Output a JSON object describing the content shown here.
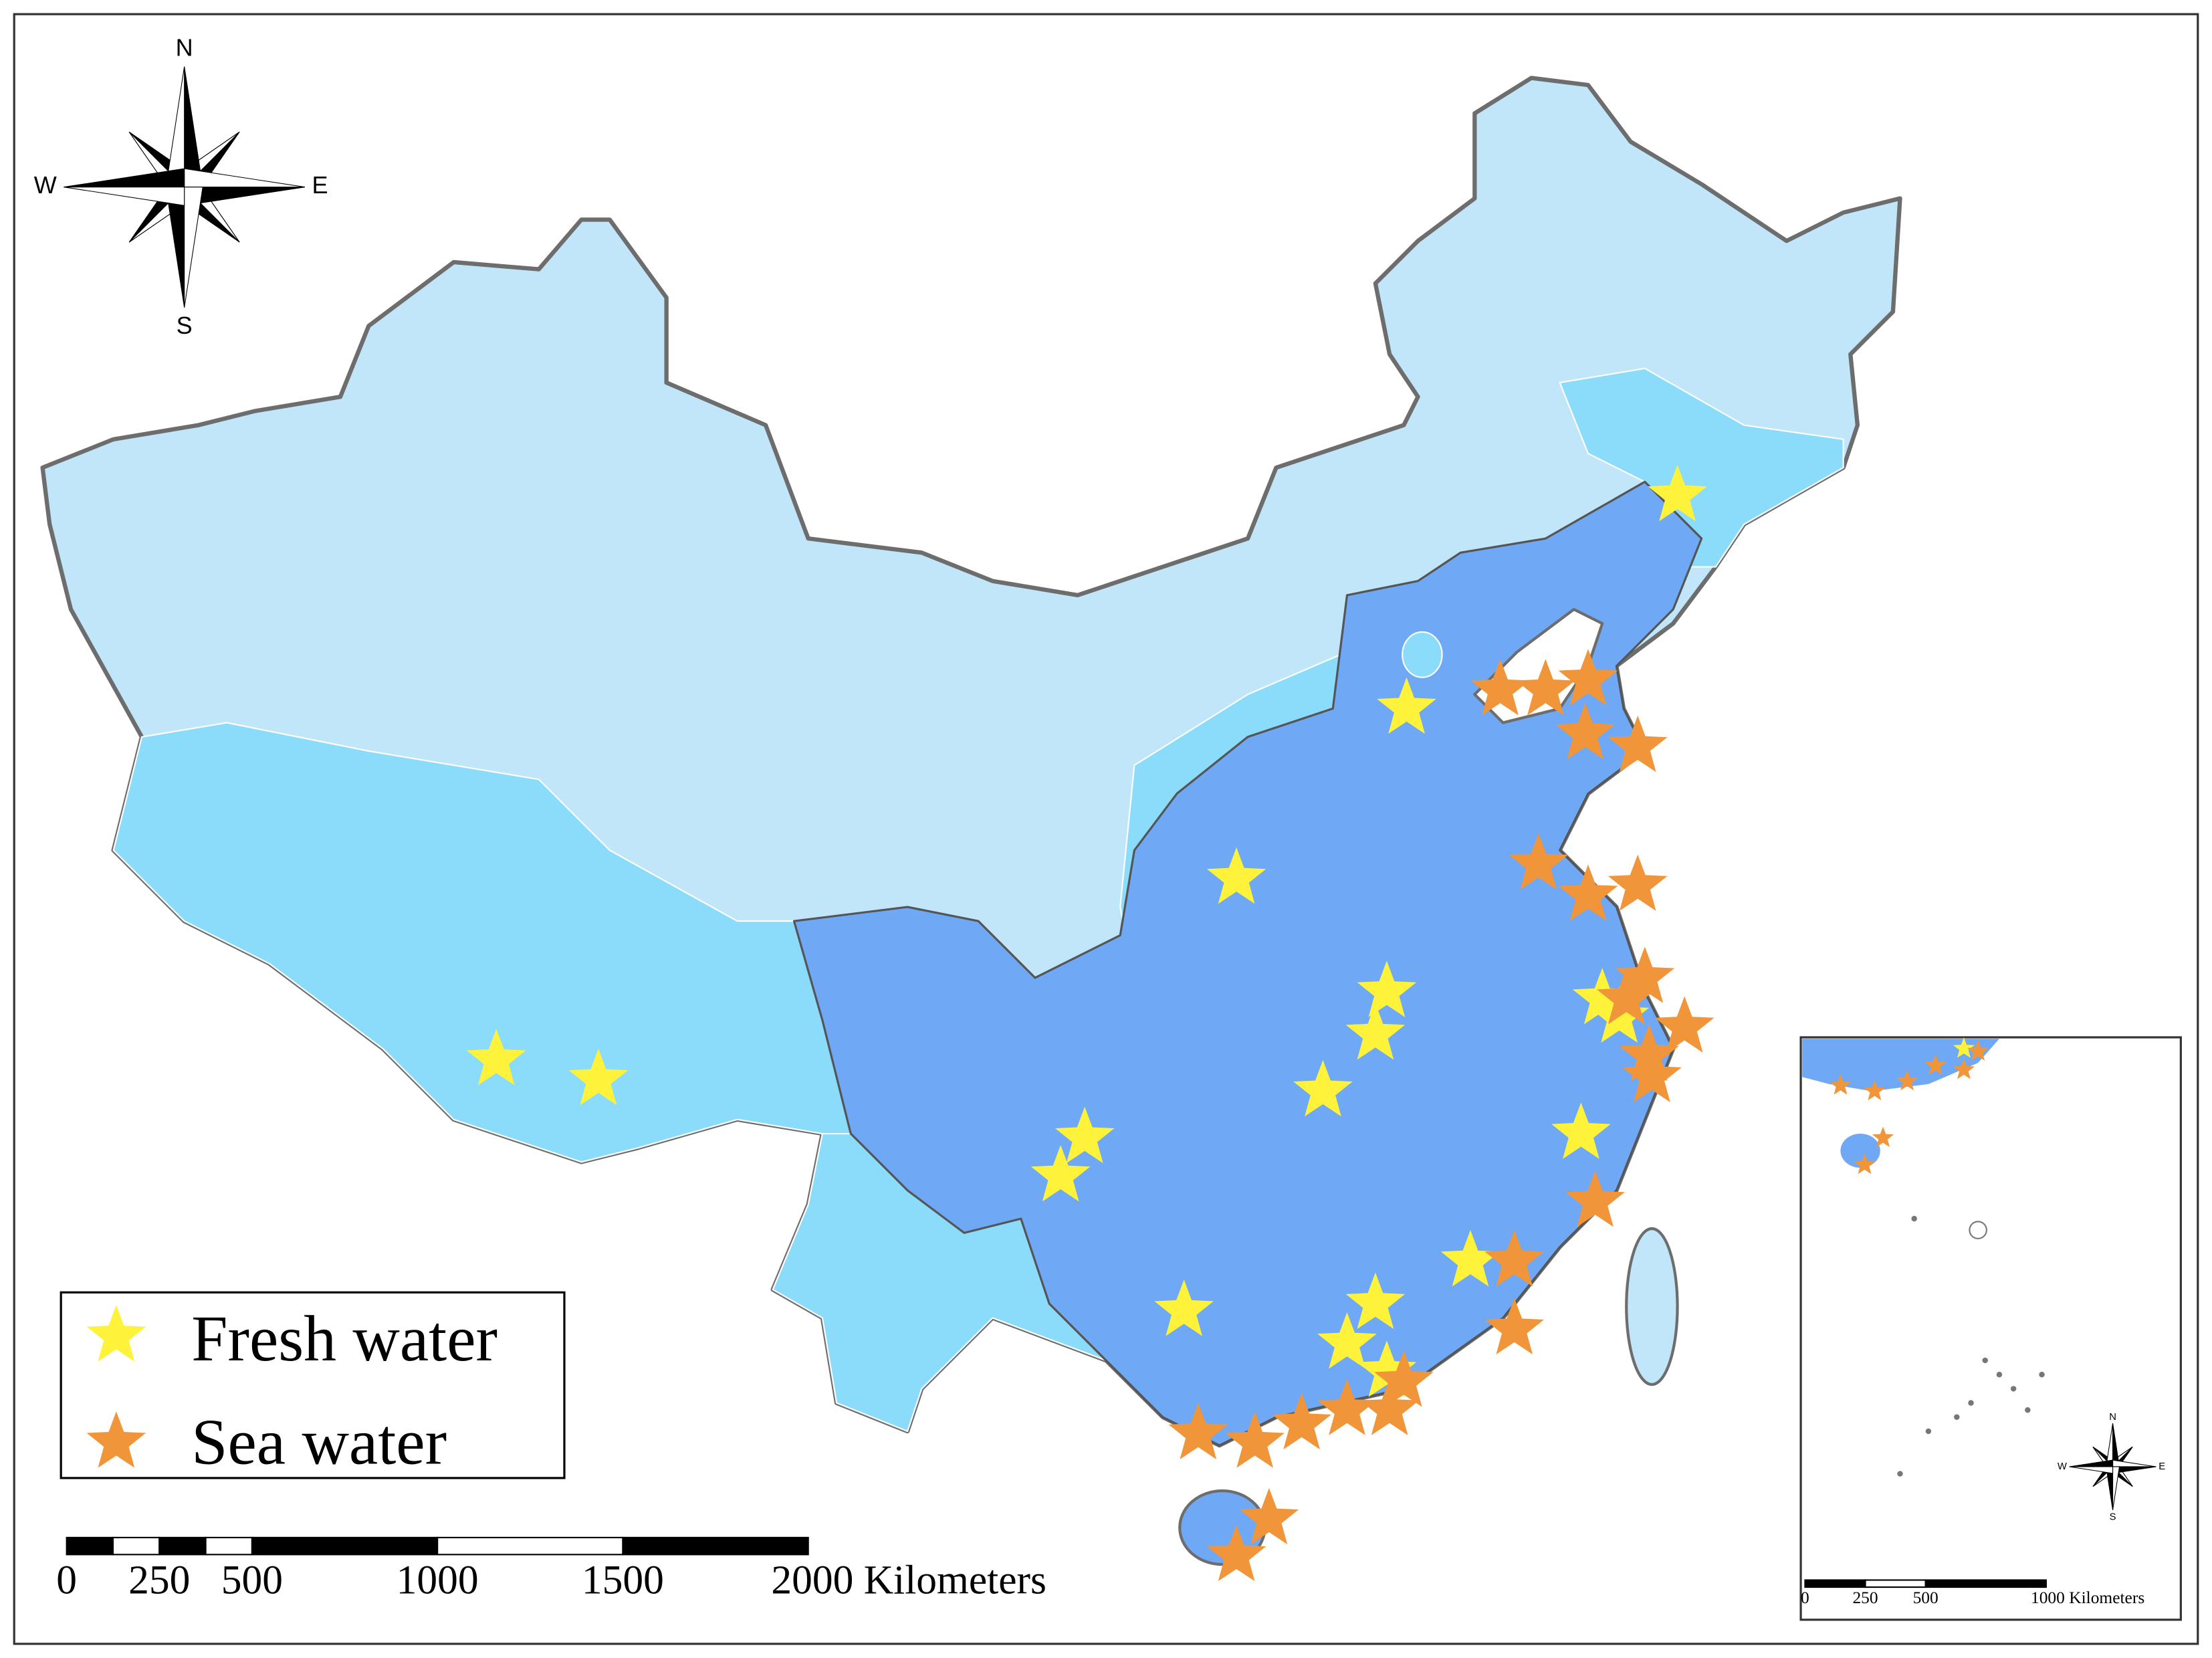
{
  "compass": {
    "north": "N",
    "south": "S",
    "east": "E",
    "west": "W"
  },
  "legend": {
    "items": [
      "Fresh water",
      "Sea water"
    ]
  },
  "scale_bar": {
    "ticks": [
      0,
      250,
      500,
      1000,
      1500,
      {
        "value": 2000,
        "label": "2000 Kilometers"
      }
    ]
  },
  "inset": {
    "compass": {
      "north": "N",
      "south": "S",
      "east": "E",
      "west": "W"
    },
    "scale_bar": {
      "ticks": [
        0,
        250,
        500,
        {
          "value": 1000,
          "label": "1000 Kilometers"
        }
      ]
    }
  }
}
